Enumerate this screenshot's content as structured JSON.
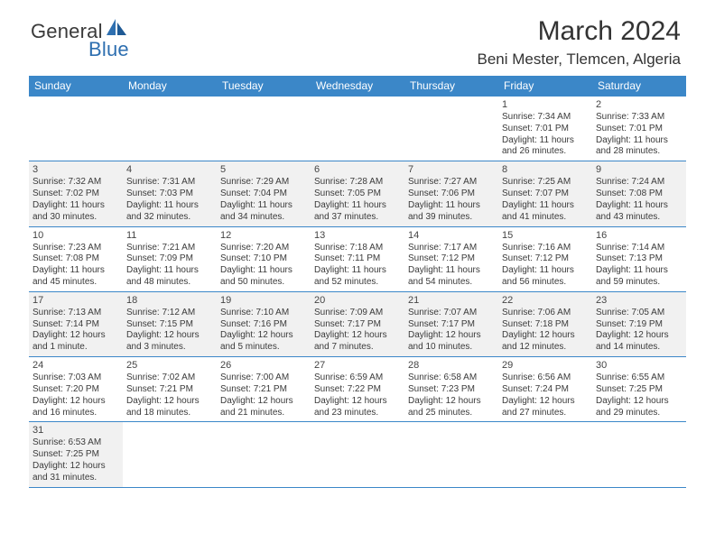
{
  "logo": {
    "text_general": "General",
    "text_blue": "Blue"
  },
  "title": "March 2024",
  "location": "Beni Mester, Tlemcen, Algeria",
  "colors": {
    "header_bg": "#3b87c8",
    "header_text": "#ffffff",
    "shade_bg": "#f1f1f1",
    "border": "#3b87c8",
    "logo_blue": "#2e6fb0"
  },
  "days_of_week": [
    "Sunday",
    "Monday",
    "Tuesday",
    "Wednesday",
    "Thursday",
    "Friday",
    "Saturday"
  ],
  "weeks": [
    [
      null,
      null,
      null,
      null,
      null,
      {
        "num": "1",
        "shade": false,
        "sunrise": "7:34 AM",
        "sunset": "7:01 PM",
        "daylight": "11 hours and 26 minutes."
      },
      {
        "num": "2",
        "shade": false,
        "sunrise": "7:33 AM",
        "sunset": "7:01 PM",
        "daylight": "11 hours and 28 minutes."
      }
    ],
    [
      {
        "num": "3",
        "shade": true,
        "sunrise": "7:32 AM",
        "sunset": "7:02 PM",
        "daylight": "11 hours and 30 minutes."
      },
      {
        "num": "4",
        "shade": true,
        "sunrise": "7:31 AM",
        "sunset": "7:03 PM",
        "daylight": "11 hours and 32 minutes."
      },
      {
        "num": "5",
        "shade": true,
        "sunrise": "7:29 AM",
        "sunset": "7:04 PM",
        "daylight": "11 hours and 34 minutes."
      },
      {
        "num": "6",
        "shade": true,
        "sunrise": "7:28 AM",
        "sunset": "7:05 PM",
        "daylight": "11 hours and 37 minutes."
      },
      {
        "num": "7",
        "shade": true,
        "sunrise": "7:27 AM",
        "sunset": "7:06 PM",
        "daylight": "11 hours and 39 minutes."
      },
      {
        "num": "8",
        "shade": true,
        "sunrise": "7:25 AM",
        "sunset": "7:07 PM",
        "daylight": "11 hours and 41 minutes."
      },
      {
        "num": "9",
        "shade": true,
        "sunrise": "7:24 AM",
        "sunset": "7:08 PM",
        "daylight": "11 hours and 43 minutes."
      }
    ],
    [
      {
        "num": "10",
        "shade": false,
        "sunrise": "7:23 AM",
        "sunset": "7:08 PM",
        "daylight": "11 hours and 45 minutes."
      },
      {
        "num": "11",
        "shade": false,
        "sunrise": "7:21 AM",
        "sunset": "7:09 PM",
        "daylight": "11 hours and 48 minutes."
      },
      {
        "num": "12",
        "shade": false,
        "sunrise": "7:20 AM",
        "sunset": "7:10 PM",
        "daylight": "11 hours and 50 minutes."
      },
      {
        "num": "13",
        "shade": false,
        "sunrise": "7:18 AM",
        "sunset": "7:11 PM",
        "daylight": "11 hours and 52 minutes."
      },
      {
        "num": "14",
        "shade": false,
        "sunrise": "7:17 AM",
        "sunset": "7:12 PM",
        "daylight": "11 hours and 54 minutes."
      },
      {
        "num": "15",
        "shade": false,
        "sunrise": "7:16 AM",
        "sunset": "7:12 PM",
        "daylight": "11 hours and 56 minutes."
      },
      {
        "num": "16",
        "shade": false,
        "sunrise": "7:14 AM",
        "sunset": "7:13 PM",
        "daylight": "11 hours and 59 minutes."
      }
    ],
    [
      {
        "num": "17",
        "shade": true,
        "sunrise": "7:13 AM",
        "sunset": "7:14 PM",
        "daylight": "12 hours and 1 minute."
      },
      {
        "num": "18",
        "shade": true,
        "sunrise": "7:12 AM",
        "sunset": "7:15 PM",
        "daylight": "12 hours and 3 minutes."
      },
      {
        "num": "19",
        "shade": true,
        "sunrise": "7:10 AM",
        "sunset": "7:16 PM",
        "daylight": "12 hours and 5 minutes."
      },
      {
        "num": "20",
        "shade": true,
        "sunrise": "7:09 AM",
        "sunset": "7:17 PM",
        "daylight": "12 hours and 7 minutes."
      },
      {
        "num": "21",
        "shade": true,
        "sunrise": "7:07 AM",
        "sunset": "7:17 PM",
        "daylight": "12 hours and 10 minutes."
      },
      {
        "num": "22",
        "shade": true,
        "sunrise": "7:06 AM",
        "sunset": "7:18 PM",
        "daylight": "12 hours and 12 minutes."
      },
      {
        "num": "23",
        "shade": true,
        "sunrise": "7:05 AM",
        "sunset": "7:19 PM",
        "daylight": "12 hours and 14 minutes."
      }
    ],
    [
      {
        "num": "24",
        "shade": false,
        "sunrise": "7:03 AM",
        "sunset": "7:20 PM",
        "daylight": "12 hours and 16 minutes."
      },
      {
        "num": "25",
        "shade": false,
        "sunrise": "7:02 AM",
        "sunset": "7:21 PM",
        "daylight": "12 hours and 18 minutes."
      },
      {
        "num": "26",
        "shade": false,
        "sunrise": "7:00 AM",
        "sunset": "7:21 PM",
        "daylight": "12 hours and 21 minutes."
      },
      {
        "num": "27",
        "shade": false,
        "sunrise": "6:59 AM",
        "sunset": "7:22 PM",
        "daylight": "12 hours and 23 minutes."
      },
      {
        "num": "28",
        "shade": false,
        "sunrise": "6:58 AM",
        "sunset": "7:23 PM",
        "daylight": "12 hours and 25 minutes."
      },
      {
        "num": "29",
        "shade": false,
        "sunrise": "6:56 AM",
        "sunset": "7:24 PM",
        "daylight": "12 hours and 27 minutes."
      },
      {
        "num": "30",
        "shade": false,
        "sunrise": "6:55 AM",
        "sunset": "7:25 PM",
        "daylight": "12 hours and 29 minutes."
      }
    ],
    [
      {
        "num": "31",
        "shade": true,
        "sunrise": "6:53 AM",
        "sunset": "7:25 PM",
        "daylight": "12 hours and 31 minutes."
      },
      null,
      null,
      null,
      null,
      null,
      null
    ]
  ],
  "labels": {
    "sunrise": "Sunrise: ",
    "sunset": "Sunset: ",
    "daylight": "Daylight: "
  }
}
